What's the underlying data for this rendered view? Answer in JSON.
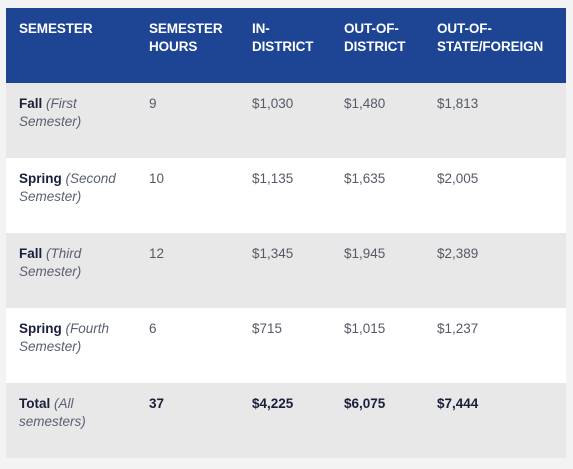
{
  "headers": [
    "SEMESTER",
    "SEMESTER HOURS",
    "IN-DISTRICT",
    "OUT-OF-DISTRICT",
    "OUT-OF-STATE/FOREIGN"
  ],
  "rows": [
    {
      "name": "Fall",
      "note": "(First Semester)",
      "hours": "9",
      "in_district": "$1,030",
      "out_of_district": "$1,480",
      "out_of_state": "$1,813"
    },
    {
      "name": "Spring",
      "note": "(Second Semester)",
      "hours": "10",
      "in_district": "$1,135",
      "out_of_district": "$1,635",
      "out_of_state": "$2,005"
    },
    {
      "name": "Fall",
      "note": "(Third Semester)",
      "hours": "12",
      "in_district": "$1,345",
      "out_of_district": "$1,945",
      "out_of_state": "$2,389"
    },
    {
      "name": "Spring",
      "note": "(Fourth Semester)",
      "hours": "6",
      "in_district": "$715",
      "out_of_district": "$1,015",
      "out_of_state": "$1,237"
    }
  ],
  "total": {
    "name": "Total",
    "note": "(All semesters)",
    "hours": "37",
    "in_district": "$4,225",
    "out_of_district": "$6,075",
    "out_of_state": "$7,444"
  }
}
